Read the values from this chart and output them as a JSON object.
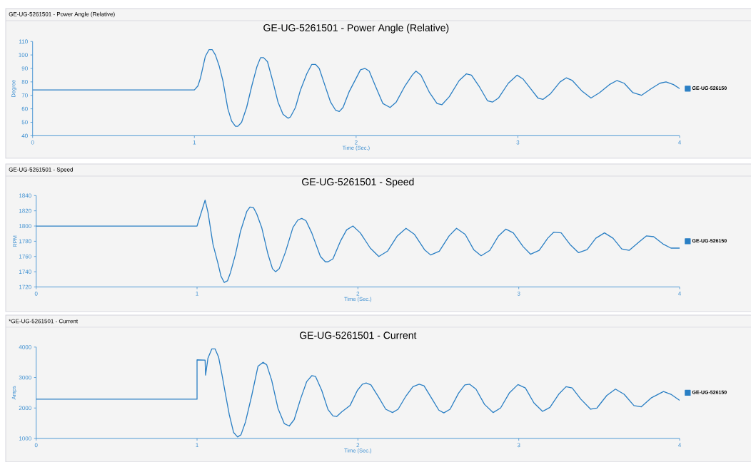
{
  "chart_data": [
    {
      "type": "line",
      "title": "GE-UG-5261501 - Power Angle (Relative)",
      "annotations": [
        "GE-UG-5261501 - Power Angle (Relative)"
      ],
      "xlabel": "Time (Sec.)",
      "ylabel": "Degree",
      "legend": "right",
      "xlim": [
        0,
        4
      ],
      "xticks": [
        0,
        1,
        2,
        3,
        4
      ],
      "ylim": [
        40,
        110
      ],
      "yticks": [
        40,
        50,
        60,
        70,
        80,
        90,
        100,
        110
      ],
      "x": [
        0,
        1.0,
        1.022,
        1.038,
        1.068,
        1.091,
        1.11,
        1.13,
        1.153,
        1.176,
        1.207,
        1.23,
        1.254,
        1.269,
        1.292,
        1.323,
        1.355,
        1.386,
        1.409,
        1.428,
        1.452,
        1.486,
        1.517,
        1.548,
        1.579,
        1.594,
        1.625,
        1.656,
        1.695,
        1.726,
        1.749,
        1.772,
        1.811,
        1.842,
        1.873,
        1.896,
        1.919,
        1.958,
        1.997,
        2.027,
        2.055,
        2.081,
        2.119,
        2.165,
        2.21,
        2.248,
        2.302,
        2.347,
        2.37,
        2.401,
        2.454,
        2.5,
        2.53,
        2.576,
        2.637,
        2.682,
        2.713,
        2.759,
        2.812,
        2.843,
        2.88,
        2.941,
        2.995,
        3.033,
        3.079,
        3.124,
        3.155,
        3.2,
        3.261,
        3.299,
        3.337,
        3.398,
        3.452,
        3.505,
        3.566,
        3.612,
        3.657,
        3.711,
        3.764,
        3.825,
        3.878,
        3.916,
        3.962,
        4.0
      ],
      "series": [
        {
          "name": "GE-UG-526150",
          "color": "#2a7fc4",
          "values": [
            74,
            74,
            77,
            83,
            99,
            104,
            104,
            100,
            92,
            81,
            60,
            51,
            47,
            47,
            50,
            61,
            77,
            91,
            98,
            98,
            95,
            80,
            65,
            56,
            53,
            54,
            61,
            74,
            86,
            93,
            93,
            90,
            76,
            65,
            59,
            58,
            61,
            73,
            82,
            89,
            90,
            88,
            77,
            64,
            61,
            65,
            77,
            85,
            88,
            85,
            72,
            64,
            63,
            69,
            81,
            86,
            85,
            77,
            66,
            65,
            68,
            79,
            85,
            82,
            75,
            68,
            67,
            71,
            80,
            83,
            81,
            73,
            68,
            72,
            78,
            81,
            79,
            72,
            70,
            75,
            79,
            80,
            78,
            75
          ]
        }
      ]
    },
    {
      "type": "line",
      "title": "GE-UG-5261501 - Speed",
      "annotations": [
        "GE-UG-5261501 - Speed"
      ],
      "xlabel": "Time (Sec.)",
      "ylabel": "RPM",
      "legend": "right",
      "xlim": [
        0,
        4
      ],
      "xticks": [
        0,
        1,
        2,
        3,
        4
      ],
      "ylim": [
        1720,
        1840
      ],
      "yticks": [
        1720,
        1740,
        1760,
        1780,
        1800,
        1820,
        1840
      ],
      "x": [
        0,
        1.0,
        1.05,
        1.068,
        1.099,
        1.13,
        1.149,
        1.169,
        1.189,
        1.208,
        1.239,
        1.27,
        1.309,
        1.329,
        1.351,
        1.371,
        1.402,
        1.441,
        1.469,
        1.488,
        1.511,
        1.55,
        1.596,
        1.627,
        1.651,
        1.677,
        1.713,
        1.767,
        1.798,
        1.814,
        1.845,
        1.891,
        1.93,
        1.969,
        2.015,
        2.077,
        2.13,
        2.184,
        2.245,
        2.299,
        2.352,
        2.414,
        2.452,
        2.506,
        2.567,
        2.613,
        2.667,
        2.72,
        2.766,
        2.82,
        2.874,
        2.92,
        2.966,
        3.027,
        3.073,
        3.127,
        3.18,
        3.218,
        3.264,
        3.318,
        3.372,
        3.425,
        3.479,
        3.533,
        3.586,
        3.64,
        3.686,
        3.747,
        3.793,
        3.839,
        3.9,
        3.946,
        4.0
      ],
      "series": [
        {
          "name": "GE-UG-526150",
          "color": "#2a7fc4",
          "values": [
            1800,
            1800,
            1834,
            1818,
            1776,
            1751,
            1734,
            1726,
            1728,
            1739,
            1763,
            1793,
            1819,
            1825,
            1824,
            1816,
            1798,
            1763,
            1744,
            1740,
            1744,
            1766,
            1798,
            1808,
            1810,
            1807,
            1791,
            1760,
            1753,
            1753,
            1757,
            1780,
            1795,
            1800,
            1791,
            1771,
            1760,
            1767,
            1787,
            1797,
            1789,
            1769,
            1762,
            1767,
            1787,
            1797,
            1789,
            1769,
            1761,
            1768,
            1787,
            1796,
            1791,
            1773,
            1763,
            1768,
            1784,
            1792,
            1791,
            1776,
            1765,
            1769,
            1784,
            1791,
            1784,
            1770,
            1768,
            1779,
            1787,
            1786,
            1776,
            1771,
            1771
          ]
        }
      ]
    },
    {
      "type": "line",
      "title": "GE-UG-5261501 - Current",
      "annotations": [
        "*GE-UG-5261501 - Current"
      ],
      "xlabel": "Time (Sec.)",
      "ylabel": "Amps",
      "legend": "right",
      "xlim": [
        0,
        4
      ],
      "xticks": [
        0,
        1,
        2,
        3,
        4
      ],
      "ylim": [
        1000,
        4000
      ],
      "yticks": [
        1000,
        2000,
        3000,
        4000
      ],
      "x": [
        0,
        1.0,
        1.0,
        1.05,
        1.053,
        1.068,
        1.092,
        1.112,
        1.134,
        1.154,
        1.177,
        1.2,
        1.227,
        1.252,
        1.273,
        1.301,
        1.34,
        1.379,
        1.41,
        1.433,
        1.464,
        1.503,
        1.542,
        1.573,
        1.604,
        1.643,
        1.682,
        1.713,
        1.736,
        1.775,
        1.814,
        1.845,
        1.868,
        1.899,
        1.951,
        1.997,
        2.028,
        2.051,
        2.081,
        2.127,
        2.173,
        2.215,
        2.25,
        2.296,
        2.342,
        2.381,
        2.411,
        2.457,
        2.503,
        2.534,
        2.573,
        2.626,
        2.665,
        2.695,
        2.734,
        2.787,
        2.841,
        2.887,
        2.941,
        2.995,
        3.041,
        3.094,
        3.148,
        3.194,
        3.248,
        3.294,
        3.332,
        3.386,
        3.447,
        3.486,
        3.547,
        3.601,
        3.655,
        3.716,
        3.762,
        3.823,
        3.9,
        3.946,
        4.0
      ],
      "series": [
        {
          "name": "GE-UG-526150",
          "color": "#2a7fc4",
          "values": [
            2290,
            2290,
            3580,
            3570,
            3080,
            3640,
            3940,
            3940,
            3670,
            3120,
            2450,
            1790,
            1200,
            1050,
            1120,
            1540,
            2410,
            3370,
            3500,
            3420,
            2910,
            1990,
            1490,
            1410,
            1620,
            2290,
            2870,
            3060,
            3040,
            2580,
            1950,
            1740,
            1720,
            1870,
            2080,
            2580,
            2780,
            2820,
            2760,
            2370,
            1960,
            1850,
            1960,
            2370,
            2700,
            2780,
            2730,
            2330,
            1930,
            1840,
            1960,
            2490,
            2760,
            2780,
            2620,
            2120,
            1850,
            2000,
            2490,
            2770,
            2660,
            2170,
            1890,
            2020,
            2450,
            2700,
            2660,
            2290,
            1960,
            2000,
            2410,
            2620,
            2450,
            2080,
            2040,
            2330,
            2540,
            2450,
            2250
          ]
        }
      ]
    }
  ]
}
